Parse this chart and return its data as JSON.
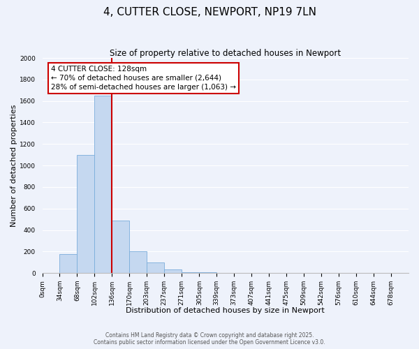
{
  "title": "4, CUTTER CLOSE, NEWPORT, NP19 7LN",
  "subtitle": "Size of property relative to detached houses in Newport",
  "xlabel": "Distribution of detached houses by size in Newport",
  "ylabel": "Number of detached properties",
  "bar_labels": [
    "0sqm",
    "34sqm",
    "68sqm",
    "102sqm",
    "136sqm",
    "170sqm",
    "203sqm",
    "237sqm",
    "271sqm",
    "305sqm",
    "339sqm",
    "373sqm",
    "407sqm",
    "441sqm",
    "475sqm",
    "509sqm",
    "542sqm",
    "576sqm",
    "610sqm",
    "644sqm",
    "678sqm"
  ],
  "bar_values": [
    0,
    175,
    1100,
    1650,
    490,
    200,
    100,
    35,
    10,
    5,
    0,
    0,
    0,
    0,
    0,
    0,
    0,
    0,
    0,
    0,
    0
  ],
  "bar_color": "#c5d8f0",
  "bar_edge_color": "#7aaddb",
  "background_color": "#eef2fb",
  "grid_color": "#ffffff",
  "vline_x_index": 4,
  "vline_color": "#cc0000",
  "ylim": [
    0,
    2000
  ],
  "yticks": [
    0,
    200,
    400,
    600,
    800,
    1000,
    1200,
    1400,
    1600,
    1800,
    2000
  ],
  "annotation_text": "4 CUTTER CLOSE: 128sqm\n← 70% of detached houses are smaller (2,644)\n28% of semi-detached houses are larger (1,063) →",
  "annotation_box_color": "#ffffff",
  "annotation_box_edge_color": "#cc0000",
  "footer_line1": "Contains HM Land Registry data © Crown copyright and database right 2025.",
  "footer_line2": "Contains public sector information licensed under the Open Government Licence v3.0.",
  "title_fontsize": 11,
  "subtitle_fontsize": 8.5,
  "axis_label_fontsize": 8,
  "tick_fontsize": 6.5,
  "annotation_fontsize": 7.5,
  "footer_fontsize": 5.5
}
